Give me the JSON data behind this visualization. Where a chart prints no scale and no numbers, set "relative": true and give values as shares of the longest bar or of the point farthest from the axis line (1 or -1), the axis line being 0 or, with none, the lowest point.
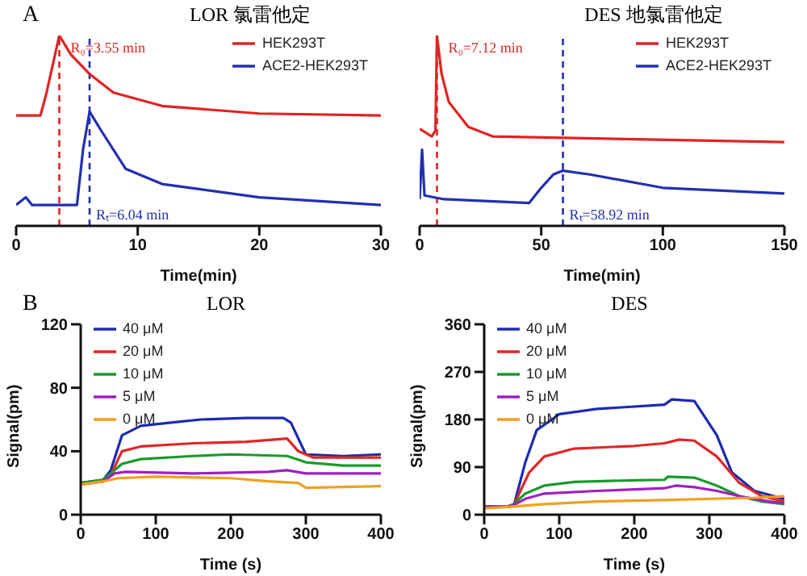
{
  "chart_data": [
    {
      "type": "line",
      "title": "LOR  氯雷他定",
      "xlabel": "Time(min)",
      "annotations": [
        "A"
      ],
      "relative": true,
      "xlim": [
        0,
        30
      ],
      "xticks": [
        0,
        10,
        20,
        30
      ],
      "legend": "top right",
      "marker": "none",
      "line_style": "solid",
      "grid": false,
      "tick_labels": "x",
      "series": [
        {
          "name": "HEK293T",
          "color": "#e02424",
          "x": [
            0,
            2,
            2.5,
            3.55,
            4.5,
            6,
            8,
            12,
            20,
            30
          ],
          "values": [
            0.58,
            0.58,
            0.7,
            1,
            0.9,
            0.8,
            0.7,
            0.63,
            0.59,
            0.58
          ]
        },
        {
          "name": "ACE2-HEK293T",
          "color": "#2230b0",
          "x": [
            0,
            0.8,
            1.3,
            5,
            5.5,
            6.04,
            7,
            9,
            12,
            20,
            30
          ],
          "values": [
            0.11,
            0.15,
            0.11,
            0.11,
            0.4,
            0.6,
            0.5,
            0.3,
            0.22,
            0.15,
            0.11
          ]
        }
      ],
      "ref_lines": [
        {
          "axis": "x",
          "value": 3.55,
          "label": "R₀=3.55 min",
          "color": "#e02424",
          "line_style": "dashed"
        },
        {
          "axis": "x",
          "value": 6.04,
          "label": "Rₜ=6.04 min",
          "color": "#2230b0",
          "line_style": "dashed"
        }
      ]
    },
    {
      "type": "line",
      "title": "DES  地氯雷他定",
      "xlabel": "Time(min)",
      "relative": true,
      "xlim": [
        0,
        150
      ],
      "xticks": [
        0,
        50,
        100,
        150
      ],
      "legend": "top right",
      "marker": "none",
      "line_style": "solid",
      "grid": false,
      "tick_labels": "x",
      "series": [
        {
          "name": "HEK293T",
          "color": "#e02424",
          "x": [
            0,
            5,
            6.5,
            7.12,
            9,
            12,
            20,
            30,
            150
          ],
          "values": [
            0.51,
            0.47,
            0.5,
            1,
            0.8,
            0.65,
            0.52,
            0.47,
            0.44
          ]
        },
        {
          "name": "ACE2-HEK293T",
          "color": "#2230b0",
          "x": [
            0,
            1,
            2,
            10,
            45,
            50,
            55,
            58.92,
            70,
            100,
            150
          ],
          "values": [
            0.14,
            0.4,
            0.16,
            0.14,
            0.12,
            0.2,
            0.27,
            0.29,
            0.27,
            0.2,
            0.17
          ]
        }
      ],
      "ref_lines": [
        {
          "axis": "x",
          "value": 7.12,
          "label": "R₀=7.12 min",
          "color": "#e02424",
          "line_style": "dashed"
        },
        {
          "axis": "x",
          "value": 58.92,
          "label": "Rₜ=58.92 min",
          "color": "#2230b0",
          "line_style": "dashed"
        }
      ]
    },
    {
      "type": "line",
      "title": "LOR",
      "xlabel": "Time (s)",
      "ylabel": "Signal(pm)",
      "annotations": [
        "B"
      ],
      "xlim": [
        0,
        400
      ],
      "xticks": [
        0,
        100,
        200,
        300,
        400
      ],
      "ylim": [
        0,
        120
      ],
      "yticks": [
        0,
        40,
        80,
        120
      ],
      "legend": "top left",
      "marker": "none",
      "line_style": "solid",
      "grid": false,
      "series": [
        {
          "name": "40 μM",
          "color": "#1c2bb0",
          "x": [
            0,
            30,
            40,
            55,
            80,
            120,
            160,
            220,
            270,
            280,
            300,
            350,
            400
          ],
          "values": [
            20,
            22,
            28,
            50,
            56,
            58,
            60,
            61,
            61,
            58,
            38,
            37,
            38
          ]
        },
        {
          "name": "20 μM",
          "color": "#e02628",
          "x": [
            0,
            30,
            40,
            55,
            80,
            150,
            220,
            275,
            290,
            310,
            400
          ],
          "values": [
            20,
            21,
            25,
            40,
            43,
            45,
            46,
            48,
            40,
            36,
            36
          ]
        },
        {
          "name": "10 μM",
          "color": "#1a9a2a",
          "x": [
            0,
            30,
            55,
            80,
            150,
            200,
            275,
            300,
            350,
            400
          ],
          "values": [
            20,
            22,
            32,
            35,
            37,
            38,
            37,
            33,
            31,
            31
          ]
        },
        {
          "name": "5 μM",
          "color": "#a020c0",
          "x": [
            0,
            30,
            45,
            60,
            150,
            250,
            275,
            300,
            400
          ],
          "values": [
            19,
            21,
            26,
            27,
            26,
            27,
            28,
            26,
            26
          ]
        },
        {
          "name": "0 μM",
          "color": "#f0a020",
          "x": [
            0,
            30,
            50,
            100,
            200,
            250,
            290,
            300,
            400
          ],
          "values": [
            19,
            21,
            23,
            24,
            23,
            21,
            20,
            17,
            18
          ]
        }
      ]
    },
    {
      "type": "line",
      "title": "DES",
      "xlabel": "Time (s)",
      "ylabel": "Signal(pm)",
      "xlim": [
        0,
        400
      ],
      "xticks": [
        0,
        100,
        200,
        300,
        400
      ],
      "ylim": [
        0,
        360
      ],
      "yticks": [
        0,
        90,
        180,
        270,
        360
      ],
      "legend": "top left",
      "marker": "none",
      "line_style": "solid",
      "grid": false,
      "series": [
        {
          "name": "40 μM",
          "color": "#1c2bb0",
          "x": [
            0,
            30,
            40,
            55,
            70,
            100,
            150,
            240,
            250,
            280,
            310,
            330,
            360,
            400
          ],
          "values": [
            15,
            15,
            20,
            100,
            160,
            190,
            200,
            208,
            218,
            215,
            150,
            80,
            45,
            30
          ]
        },
        {
          "name": "20 μM",
          "color": "#e02628",
          "x": [
            0,
            30,
            40,
            60,
            80,
            120,
            200,
            240,
            260,
            280,
            310,
            340,
            370,
            400
          ],
          "values": [
            15,
            15,
            20,
            80,
            110,
            125,
            130,
            135,
            142,
            140,
            110,
            60,
            35,
            25
          ]
        },
        {
          "name": "10 μM",
          "color": "#1a9a2a",
          "x": [
            0,
            35,
            55,
            80,
            120,
            200,
            240,
            245,
            280,
            310,
            340,
            370,
            400
          ],
          "values": [
            15,
            15,
            40,
            55,
            62,
            65,
            66,
            72,
            70,
            55,
            35,
            25,
            20
          ]
        },
        {
          "name": "5 μM",
          "color": "#a020c0",
          "x": [
            0,
            35,
            55,
            80,
            150,
            240,
            255,
            280,
            310,
            340,
            380,
            400
          ],
          "values": [
            15,
            15,
            30,
            40,
            45,
            50,
            55,
            52,
            45,
            35,
            25,
            22
          ]
        },
        {
          "name": "0 μM",
          "color": "#f0a020",
          "x": [
            0,
            35,
            80,
            150,
            250,
            300,
            360,
            400
          ],
          "values": [
            12,
            15,
            20,
            25,
            28,
            30,
            32,
            35
          ]
        }
      ]
    }
  ]
}
